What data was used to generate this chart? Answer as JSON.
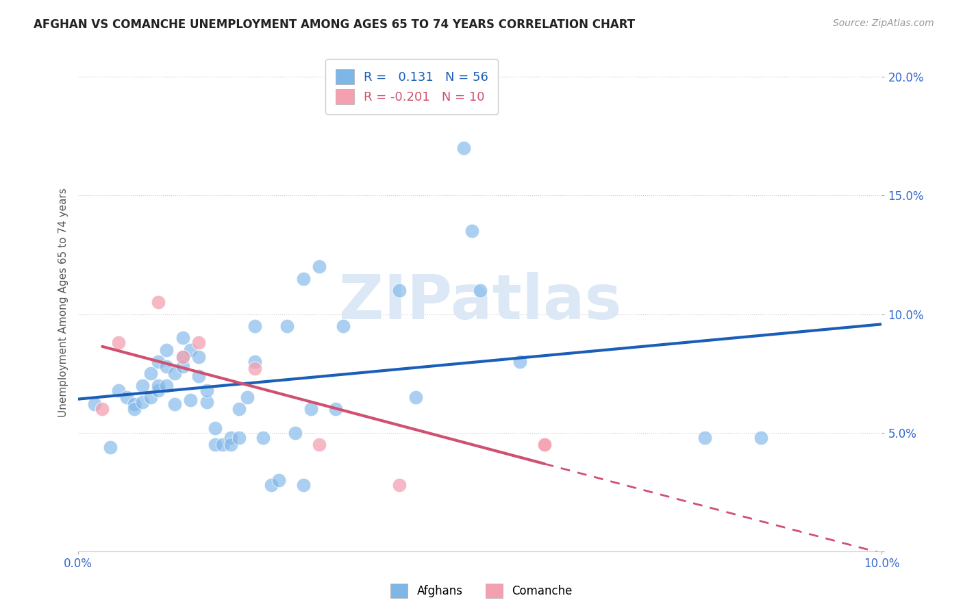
{
  "title": "AFGHAN VS COMANCHE UNEMPLOYMENT AMONG AGES 65 TO 74 YEARS CORRELATION CHART",
  "source": "Source: ZipAtlas.com",
  "ylabel": "Unemployment Among Ages 65 to 74 years",
  "xlim": [
    0.0,
    0.1
  ],
  "ylim": [
    0.0,
    0.21
  ],
  "xtick_positions": [
    0.0,
    0.1
  ],
  "xtick_labels": [
    "0.0%",
    "10.0%"
  ],
  "ytick_positions": [
    0.0,
    0.05,
    0.1,
    0.15,
    0.2
  ],
  "ytick_labels": [
    "",
    "5.0%",
    "10.0%",
    "15.0%",
    "20.0%"
  ],
  "afghan_color": "#7EB6E8",
  "comanche_color": "#F4A0B0",
  "trend_afghan_color": "#1A5EB8",
  "trend_comanche_color": "#D05070",
  "legend_r_afghan": "R =   0.131",
  "legend_n_afghan": "N = 56",
  "legend_r_comanche": "R = -0.201",
  "legend_n_comanche": "N = 10",
  "watermark": "ZIPatlas",
  "afghan_x": [
    0.002,
    0.004,
    0.005,
    0.006,
    0.007,
    0.007,
    0.008,
    0.008,
    0.009,
    0.009,
    0.01,
    0.01,
    0.01,
    0.011,
    0.011,
    0.011,
    0.012,
    0.012,
    0.013,
    0.013,
    0.013,
    0.014,
    0.014,
    0.015,
    0.015,
    0.016,
    0.016,
    0.017,
    0.017,
    0.018,
    0.019,
    0.019,
    0.02,
    0.02,
    0.021,
    0.022,
    0.022,
    0.023,
    0.024,
    0.025,
    0.026,
    0.027,
    0.028,
    0.028,
    0.029,
    0.03,
    0.032,
    0.033,
    0.04,
    0.042,
    0.048,
    0.049,
    0.05,
    0.055,
    0.078,
    0.085
  ],
  "afghan_y": [
    0.062,
    0.044,
    0.068,
    0.065,
    0.062,
    0.06,
    0.063,
    0.07,
    0.075,
    0.065,
    0.068,
    0.07,
    0.08,
    0.07,
    0.078,
    0.085,
    0.062,
    0.075,
    0.09,
    0.082,
    0.078,
    0.064,
    0.085,
    0.074,
    0.082,
    0.063,
    0.068,
    0.045,
    0.052,
    0.045,
    0.048,
    0.045,
    0.048,
    0.06,
    0.065,
    0.095,
    0.08,
    0.048,
    0.028,
    0.03,
    0.095,
    0.05,
    0.115,
    0.028,
    0.06,
    0.12,
    0.06,
    0.095,
    0.11,
    0.065,
    0.17,
    0.135,
    0.11,
    0.08,
    0.048,
    0.048
  ],
  "comanche_x": [
    0.003,
    0.005,
    0.01,
    0.013,
    0.015,
    0.022,
    0.03,
    0.04,
    0.058,
    0.058
  ],
  "comanche_y": [
    0.06,
    0.088,
    0.105,
    0.082,
    0.088,
    0.077,
    0.045,
    0.028,
    0.045,
    0.045
  ],
  "grid_yticks": [
    0.05,
    0.1,
    0.15,
    0.2
  ]
}
